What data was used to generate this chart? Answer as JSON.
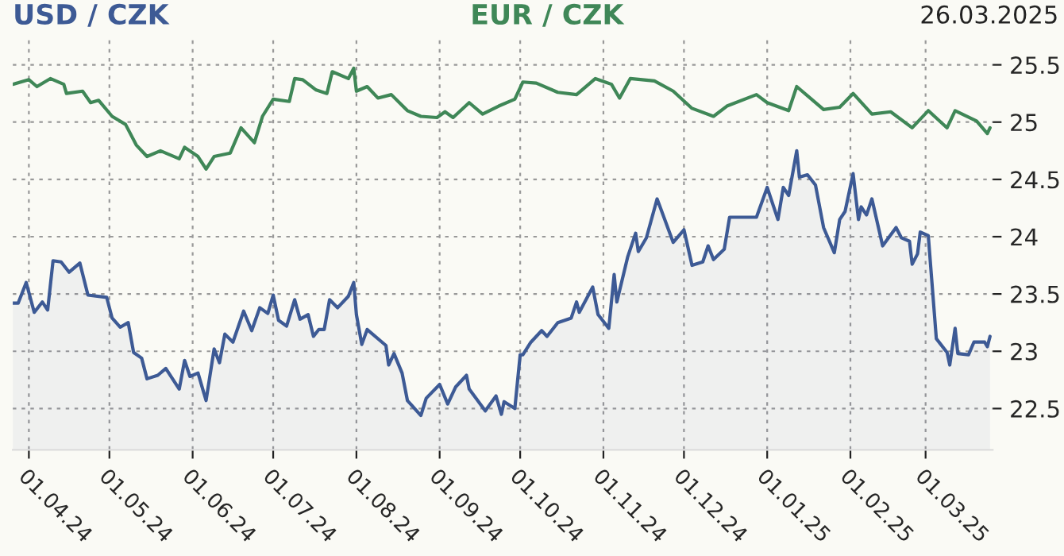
{
  "chart_data": {
    "type": "line",
    "annotations": [
      "26.03.2025"
    ],
    "legend": "top",
    "grid": true,
    "line_style": "solid",
    "marker": "none",
    "xlim": [
      "2024-03-26",
      "2025-03-26"
    ],
    "xticks": [
      {
        "value": "2024-04-01",
        "label": "01.04.24"
      },
      {
        "value": "2024-05-01",
        "label": "01.05.24"
      },
      {
        "value": "2024-06-01",
        "label": "01.06.24"
      },
      {
        "value": "2024-07-01",
        "label": "01.07.24"
      },
      {
        "value": "2024-08-01",
        "label": "01.08.24"
      },
      {
        "value": "2024-09-01",
        "label": "01.09.24"
      },
      {
        "value": "2024-10-01",
        "label": "01.10.24"
      },
      {
        "value": "2024-11-01",
        "label": "01.11.24"
      },
      {
        "value": "2024-12-01",
        "label": "01.12.24"
      },
      {
        "value": "2025-01-01",
        "label": "01.01.25"
      },
      {
        "value": "2025-02-01",
        "label": "01.02.25"
      },
      {
        "value": "2025-03-01",
        "label": "01.03.25"
      }
    ],
    "ylim": [
      22.14,
      25.76
    ],
    "yticks": [
      22.5,
      23,
      23.5,
      24,
      24.5,
      25,
      25.5
    ],
    "series": [
      {
        "name": "USD / CZK",
        "type": "area",
        "color": "#3d5a95",
        "x": [
          "2024-03-26",
          "2024-03-28",
          "2024-03-31",
          "2024-04-03",
          "2024-04-06",
          "2024-04-08",
          "2024-04-10",
          "2024-04-13",
          "2024-04-16",
          "2024-04-20",
          "2024-04-23",
          "2024-04-30",
          "2024-05-02",
          "2024-05-05",
          "2024-05-08",
          "2024-05-10",
          "2024-05-13",
          "2024-05-15",
          "2024-05-19",
          "2024-05-22",
          "2024-05-27",
          "2024-05-29",
          "2024-05-31",
          "2024-06-03",
          "2024-06-06",
          "2024-06-09",
          "2024-06-11",
          "2024-06-13",
          "2024-06-16",
          "2024-06-20",
          "2024-06-23",
          "2024-06-26",
          "2024-06-29",
          "2024-07-01",
          "2024-07-03",
          "2024-07-06",
          "2024-07-09",
          "2024-07-11",
          "2024-07-14",
          "2024-07-16",
          "2024-07-18",
          "2024-07-20",
          "2024-07-22",
          "2024-07-25",
          "2024-07-29",
          "2024-07-31",
          "2024-08-01",
          "2024-08-03",
          "2024-08-05",
          "2024-08-12",
          "2024-08-13",
          "2024-08-15",
          "2024-08-18",
          "2024-08-20",
          "2024-08-25",
          "2024-08-27",
          "2024-09-01",
          "2024-09-04",
          "2024-09-07",
          "2024-09-11",
          "2024-09-12",
          "2024-09-18",
          "2024-09-22",
          "2024-09-24",
          "2024-09-25",
          "2024-09-29",
          "2024-10-01",
          "2024-10-02",
          "2024-10-05",
          "2024-10-09",
          "2024-10-11",
          "2024-10-15",
          "2024-10-20",
          "2024-10-22",
          "2024-10-23",
          "2024-10-28",
          "2024-10-30",
          "2024-11-03",
          "2024-11-05",
          "2024-11-06",
          "2024-11-10",
          "2024-11-13",
          "2024-11-14",
          "2024-11-17",
          "2024-11-21",
          "2024-11-27",
          "2024-12-01",
          "2024-12-04",
          "2024-12-08",
          "2024-12-10",
          "2024-12-12",
          "2024-12-16",
          "2024-12-18",
          "2024-12-28",
          "2025-01-01",
          "2025-01-05",
          "2025-01-07",
          "2025-01-09",
          "2025-01-12",
          "2025-01-13",
          "2025-01-16",
          "2025-01-19",
          "2025-01-22",
          "2025-01-26",
          "2025-01-28",
          "2025-01-30",
          "2025-02-02",
          "2025-02-04",
          "2025-02-05",
          "2025-02-07",
          "2025-02-09",
          "2025-02-13",
          "2025-02-18",
          "2025-02-20",
          "2025-02-23",
          "2025-02-24",
          "2025-02-26",
          "2025-02-27",
          "2025-03-02",
          "2025-03-05",
          "2025-03-09",
          "2025-03-10",
          "2025-03-12",
          "2025-03-13",
          "2025-03-17",
          "2025-03-19",
          "2025-03-23",
          "2025-03-24",
          "2025-03-25"
        ],
        "values": [
          23.42,
          23.42,
          23.6,
          23.34,
          23.43,
          23.36,
          23.79,
          23.78,
          23.69,
          23.77,
          23.49,
          23.47,
          23.29,
          23.21,
          23.25,
          22.99,
          22.94,
          22.76,
          22.79,
          22.85,
          22.67,
          22.92,
          22.78,
          22.81,
          22.57,
          23.02,
          22.9,
          23.15,
          23.08,
          23.35,
          23.18,
          23.38,
          23.33,
          23.49,
          23.27,
          23.22,
          23.45,
          23.28,
          23.32,
          23.13,
          23.19,
          23.19,
          23.45,
          23.38,
          23.48,
          23.6,
          23.32,
          23.06,
          23.19,
          23.05,
          22.88,
          22.98,
          22.81,
          22.57,
          22.44,
          22.59,
          22.71,
          22.54,
          22.69,
          22.79,
          22.67,
          22.48,
          22.61,
          22.45,
          22.56,
          22.5,
          22.97,
          22.97,
          23.08,
          23.18,
          23.13,
          23.25,
          23.29,
          23.43,
          23.34,
          23.56,
          23.32,
          23.2,
          23.67,
          23.43,
          23.82,
          24.03,
          23.87,
          23.99,
          24.33,
          23.95,
          24.06,
          23.75,
          23.78,
          23.92,
          23.8,
          23.89,
          24.17,
          24.17,
          24.43,
          24.15,
          24.43,
          24.36,
          24.75,
          24.52,
          24.54,
          24.45,
          24.08,
          23.86,
          24.15,
          24.22,
          24.55,
          24.15,
          24.26,
          24.19,
          24.33,
          23.92,
          24.08,
          23.99,
          23.96,
          23.76,
          23.85,
          24.04,
          24.01,
          23.11,
          22.99,
          22.88,
          23.2,
          22.98,
          22.97,
          23.08,
          23.08,
          23.04,
          23.13
        ]
      },
      {
        "name": "EUR / CZK",
        "color": "#3f8757",
        "x": [
          "2024-03-26",
          "2024-04-01",
          "2024-04-04",
          "2024-04-09",
          "2024-04-14",
          "2024-04-15",
          "2024-04-21",
          "2024-04-24",
          "2024-04-27",
          "2024-05-02",
          "2024-05-07",
          "2024-05-11",
          "2024-05-15",
          "2024-05-20",
          "2024-05-27",
          "2024-05-29",
          "2024-06-03",
          "2024-06-06",
          "2024-06-09",
          "2024-06-15",
          "2024-06-19",
          "2024-06-24",
          "2024-06-27",
          "2024-07-01",
          "2024-07-07",
          "2024-07-09",
          "2024-07-12",
          "2024-07-17",
          "2024-07-21",
          "2024-07-23",
          "2024-07-29",
          "2024-07-31",
          "2024-08-01",
          "2024-08-05",
          "2024-08-09",
          "2024-08-14",
          "2024-08-20",
          "2024-08-25",
          "2024-08-31",
          "2024-09-03",
          "2024-09-06",
          "2024-09-12",
          "2024-09-17",
          "2024-09-23",
          "2024-09-29",
          "2024-10-02",
          "2024-10-07",
          "2024-10-15",
          "2024-10-22",
          "2024-10-29",
          "2024-11-04",
          "2024-11-07",
          "2024-11-11",
          "2024-11-20",
          "2024-11-27",
          "2024-12-04",
          "2024-12-12",
          "2024-12-17",
          "2024-12-28",
          "2025-01-01",
          "2025-01-09",
          "2025-01-12",
          "2025-01-22",
          "2025-01-28",
          "2025-02-02",
          "2025-02-09",
          "2025-02-16",
          "2025-02-24",
          "2025-03-02",
          "2025-03-09",
          "2025-03-12",
          "2025-03-20",
          "2025-03-24",
          "2025-03-25"
        ],
        "values": [
          25.33,
          25.37,
          25.31,
          25.38,
          25.33,
          25.25,
          25.27,
          25.17,
          25.19,
          25.05,
          24.98,
          24.8,
          24.7,
          24.75,
          24.68,
          24.78,
          24.7,
          24.59,
          24.7,
          24.73,
          24.95,
          24.82,
          25.05,
          25.2,
          25.18,
          25.38,
          25.37,
          25.28,
          25.25,
          25.44,
          25.38,
          25.47,
          25.27,
          25.31,
          25.21,
          25.24,
          25.1,
          25.05,
          25.04,
          25.09,
          25.04,
          25.17,
          25.07,
          25.14,
          25.2,
          25.35,
          25.34,
          25.26,
          25.24,
          25.38,
          25.33,
          25.21,
          25.38,
          25.36,
          25.27,
          25.12,
          25.05,
          25.14,
          25.24,
          25.17,
          25.1,
          25.31,
          25.11,
          25.13,
          25.25,
          25.07,
          25.09,
          24.95,
          25.1,
          24.95,
          25.1,
          25.01,
          24.9,
          24.95
        ]
      }
    ]
  }
}
